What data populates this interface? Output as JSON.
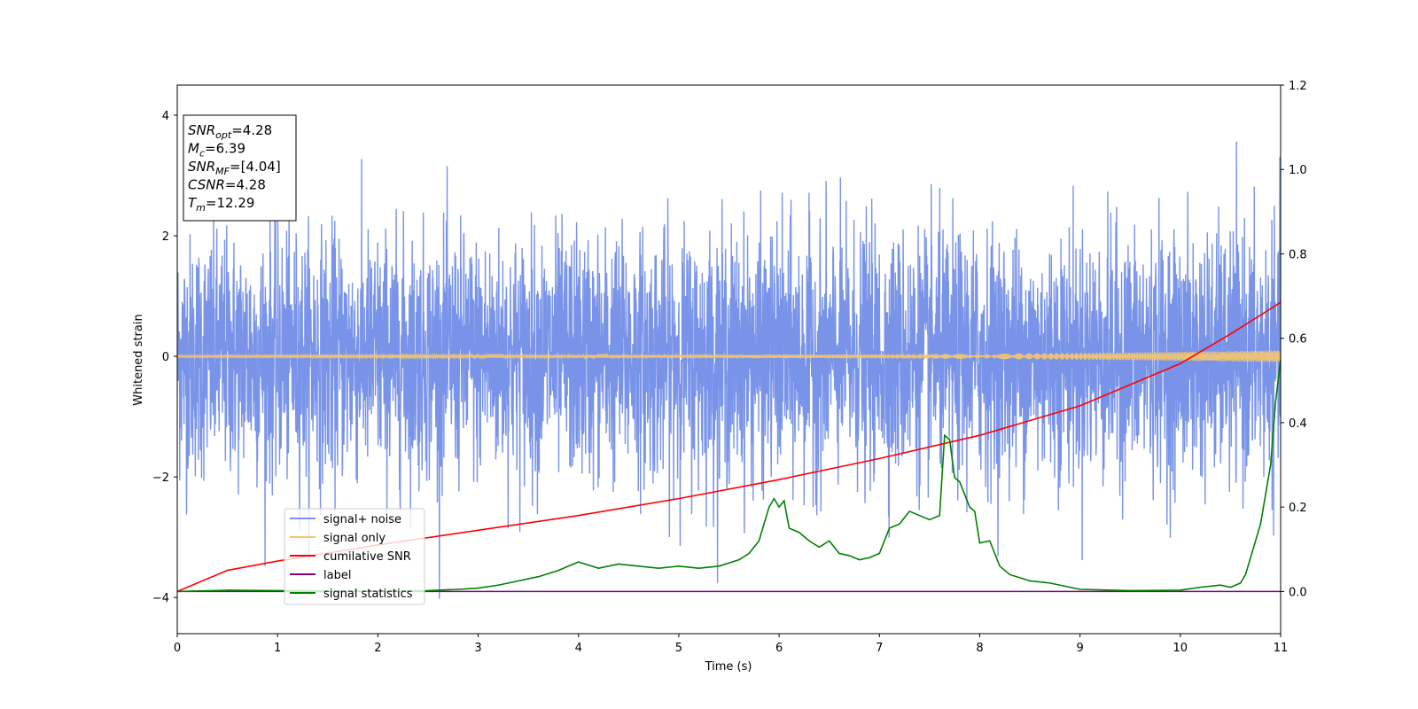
{
  "chart_data": {
    "type": "line",
    "xlabel": "Time (s)",
    "ylabel": "Whitened strain",
    "xlim": [
      0,
      11
    ],
    "ylim": [
      -4.6,
      4.5
    ],
    "y2lim": [
      -0.1,
      1.2
    ],
    "xticks": [
      "0",
      "1",
      "2",
      "3",
      "4",
      "5",
      "6",
      "7",
      "8",
      "9",
      "10",
      "11"
    ],
    "xtick_values": [
      0,
      1,
      2,
      3,
      4,
      5,
      6,
      7,
      8,
      9,
      10,
      11
    ],
    "yticks": [
      "−4",
      "−2",
      "0",
      "2",
      "4"
    ],
    "ytick_values": [
      -4,
      -2,
      0,
      2,
      4
    ],
    "y2ticks": [
      "0.0",
      "0.2",
      "0.4",
      "0.6",
      "0.8",
      "1.0",
      "1.2"
    ],
    "y2tick_values": [
      0.0,
      0.2,
      0.4,
      0.6,
      0.8,
      1.0,
      1.2
    ],
    "grid": false,
    "legend_position": "lower-left",
    "annotation": {
      "lines": [
        {
          "main": "SNR",
          "sub": "opt",
          "rest": "=4.28"
        },
        {
          "main": "M",
          "sub": "c",
          "rest": "=6.39"
        },
        {
          "main": "SNR",
          "sub": "MF",
          "rest": "=[4.04]"
        },
        {
          "main": "CSNR",
          "sub": "",
          "rest": "=4.28"
        },
        {
          "main": "T",
          "sub": "m",
          "rest": "=12.29"
        }
      ]
    },
    "series": [
      {
        "name": "signal+ noise",
        "color": "#7893e8",
        "axis": "left",
        "kind": "noise",
        "envelope": {
          "min": -4.15,
          "max": 4.1,
          "typical_amplitude": 1.0
        }
      },
      {
        "name": "signal only",
        "color": "#f5c66e",
        "axis": "left",
        "kind": "chirp",
        "amplitude_start": 0.02,
        "amplitude_end": 0.1
      },
      {
        "name": "cumilative SNR",
        "color": "#ff0000",
        "axis": "right",
        "x": [
          0,
          0.5,
          1,
          2,
          3,
          4,
          5,
          6,
          7,
          8,
          9,
          10,
          10.5,
          11
        ],
        "values": [
          0.0,
          0.05,
          0.072,
          0.11,
          0.145,
          0.18,
          0.22,
          0.265,
          0.315,
          0.37,
          0.44,
          0.54,
          0.61,
          0.685
        ]
      },
      {
        "name": "label",
        "color": "#800080",
        "axis": "right",
        "x": [
          0,
          11
        ],
        "values": [
          0.0,
          0.0
        ]
      },
      {
        "name": "signal statistics",
        "color": "#008000",
        "axis": "right",
        "x": [
          0,
          0.5,
          1,
          1.5,
          2,
          2.5,
          2.8,
          3.0,
          3.2,
          3.4,
          3.6,
          3.8,
          4.0,
          4.2,
          4.4,
          4.6,
          4.8,
          5.0,
          5.2,
          5.4,
          5.6,
          5.7,
          5.8,
          5.9,
          5.95,
          6.0,
          6.05,
          6.1,
          6.2,
          6.3,
          6.4,
          6.5,
          6.6,
          6.7,
          6.8,
          6.9,
          7.0,
          7.1,
          7.2,
          7.3,
          7.4,
          7.5,
          7.6,
          7.65,
          7.7,
          7.75,
          7.8,
          7.9,
          7.95,
          8.0,
          8.1,
          8.2,
          8.3,
          8.5,
          8.7,
          8.9,
          9.0,
          9.5,
          10.0,
          10.2,
          10.4,
          10.5,
          10.6,
          10.65,
          10.8,
          10.9,
          10.95,
          11.0
        ],
        "values": [
          0.0,
          0.003,
          0.002,
          0.001,
          0.001,
          0.002,
          0.005,
          0.008,
          0.015,
          0.025,
          0.035,
          0.05,
          0.07,
          0.055,
          0.065,
          0.06,
          0.055,
          0.06,
          0.055,
          0.06,
          0.075,
          0.09,
          0.12,
          0.2,
          0.22,
          0.2,
          0.215,
          0.15,
          0.14,
          0.12,
          0.105,
          0.12,
          0.09,
          0.085,
          0.075,
          0.08,
          0.09,
          0.15,
          0.16,
          0.19,
          0.18,
          0.17,
          0.18,
          0.37,
          0.36,
          0.27,
          0.26,
          0.2,
          0.19,
          0.115,
          0.12,
          0.06,
          0.04,
          0.025,
          0.02,
          0.01,
          0.005,
          0.002,
          0.003,
          0.01,
          0.015,
          0.01,
          0.02,
          0.04,
          0.16,
          0.3,
          0.45,
          0.55
        ]
      }
    ]
  }
}
